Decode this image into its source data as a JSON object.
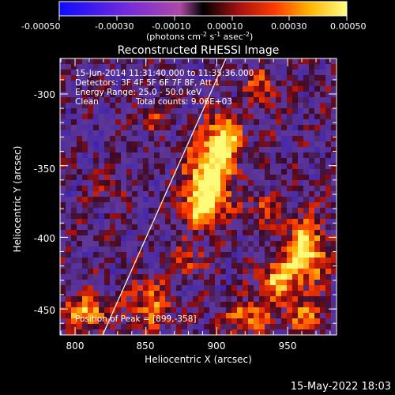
{
  "title": "Reconstructed RHESSI Image",
  "colorbar": {
    "ticks": [
      "-0.00050",
      "-0.00030",
      "-0.00010",
      "0.00010",
      "0.00030",
      "0.00050"
    ],
    "unit_label": "(photons cm",
    "unit_exp1": "-2",
    "unit_mid": " s",
    "unit_exp2": "-1",
    "unit_mid2": " asec",
    "unit_exp3": "-2",
    "unit_end": ")"
  },
  "info": {
    "time_range": "15-Jun-2014 11:31:40.000 to 11:35:36.000",
    "detectors": "Detectors: 3F 4F 5F 6F 7F 8F, Att 1",
    "energy": "Energy Range: 25.0 - 50.0 keV",
    "method": "Clean",
    "counts": "Total counts: 9.06E+03",
    "peak": "Position of Peak = [899,-358]"
  },
  "axes": {
    "xlabel": "Heliocentric X (arcsec)",
    "ylabel": "Heliocentric Y (arcsec)",
    "xticks": [
      "800",
      "850",
      "900",
      "950"
    ],
    "yticks": [
      "-300",
      "-350",
      "-400",
      "-450"
    ]
  },
  "footer": {
    "date": "15-May-2022 18:03"
  },
  "colors": {
    "text": "#ffffff",
    "limb": "#ffffff",
    "background": "#000000"
  }
}
